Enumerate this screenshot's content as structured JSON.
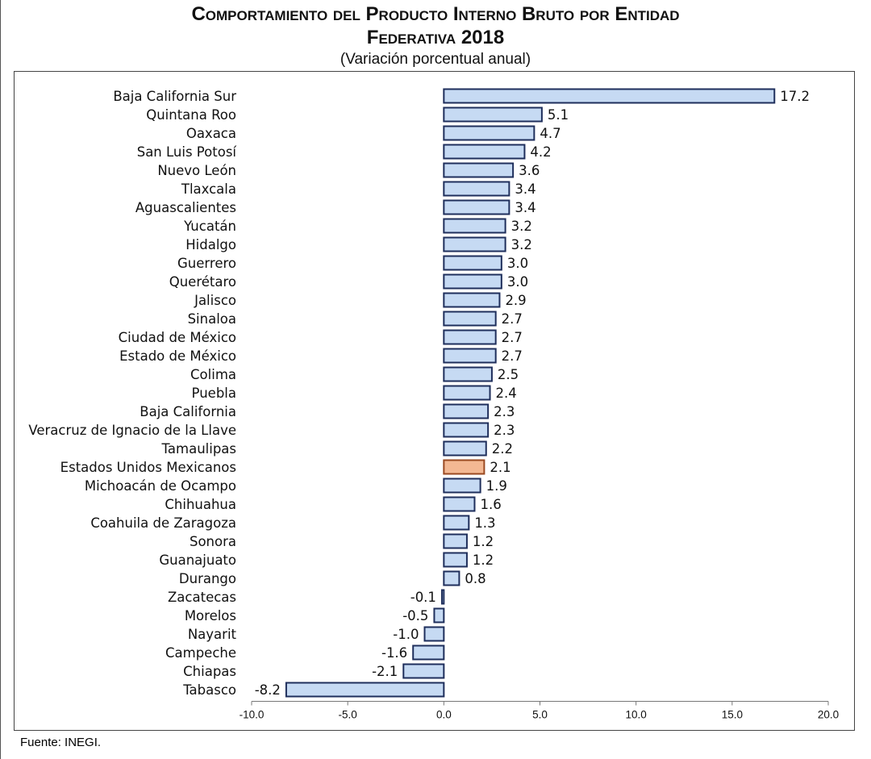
{
  "header": {
    "title_line1": "Comportamiento del Producto Interno Bruto por Entidad",
    "title_line2": "Federativa 2018",
    "subtitle": "(Variación porcentual anual)"
  },
  "footer": {
    "source": "Fuente: INEGI."
  },
  "colors": {
    "bar_fill": "#c6daf3",
    "bar_stroke": "#1f2f5c",
    "highlight_fill": "#f3b893",
    "highlight_stroke": "#9a4a22"
  },
  "chart_data": {
    "type": "bar",
    "orientation": "horizontal",
    "title": "Comportamiento del Producto Interno Bruto por Entidad Federativa 2018",
    "subtitle": "(Variación porcentual anual)",
    "xlabel": "",
    "ylabel": "",
    "xlim": [
      -10,
      20
    ],
    "xticks": [
      -10,
      -5,
      0,
      5,
      10,
      15,
      20
    ],
    "xtick_labels": [
      "-10.0",
      "-5.0",
      "0.0",
      "5.0",
      "10.0",
      "15.0",
      "20.0"
    ],
    "highlight": "Estados Unidos Mexicanos",
    "categories": [
      "Baja California Sur",
      "Quintana Roo",
      "Oaxaca",
      "San Luis Potosí",
      "Nuevo León",
      "Tlaxcala",
      "Aguascalientes",
      "Yucatán",
      "Hidalgo",
      "Guerrero",
      "Querétaro",
      "Jalisco",
      "Sinaloa",
      "Ciudad de México",
      "Estado de México",
      "Colima",
      "Puebla",
      "Baja California",
      "Veracruz de Ignacio de la Llave",
      "Tamaulipas",
      "Estados Unidos Mexicanos",
      "Michoacán de Ocampo",
      "Chihuahua",
      "Coahuila de Zaragoza",
      "Sonora",
      "Guanajuato",
      "Durango",
      "Zacatecas",
      "Morelos",
      "Nayarit",
      "Campeche",
      "Chiapas",
      "Tabasco"
    ],
    "values": [
      17.2,
      5.1,
      4.7,
      4.2,
      3.6,
      3.4,
      3.4,
      3.2,
      3.2,
      3.0,
      3.0,
      2.9,
      2.7,
      2.7,
      2.7,
      2.5,
      2.4,
      2.3,
      2.3,
      2.2,
      2.1,
      1.9,
      1.6,
      1.3,
      1.2,
      1.2,
      0.8,
      -0.1,
      -0.5,
      -1.0,
      -1.6,
      -2.1,
      -8.2
    ],
    "value_labels": [
      "17.2",
      "5.1",
      "4.7",
      "4.2",
      "3.6",
      "3.4",
      "3.4",
      "3.2",
      "3.2",
      "3.0",
      "3.0",
      "2.9",
      "2.7",
      "2.7",
      "2.7",
      "2.5",
      "2.4",
      "2.3",
      "2.3",
      "2.2",
      "2.1",
      "1.9",
      "1.6",
      "1.3",
      "1.2",
      "1.2",
      "0.8",
      "-0.1",
      "-0.5",
      "-1.0",
      "-1.6",
      "-2.1",
      "-8.2"
    ]
  }
}
